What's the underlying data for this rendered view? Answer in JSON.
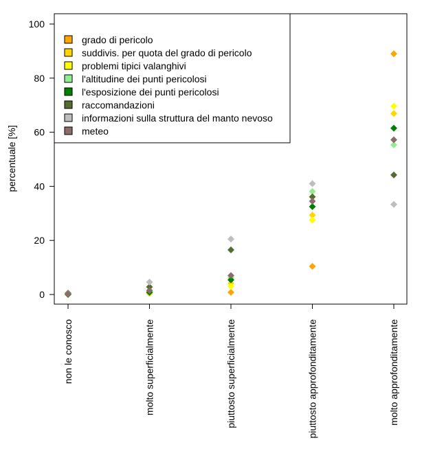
{
  "chart_data": {
    "type": "scatter",
    "title": "",
    "xlabel": "",
    "ylabel": "percentuale [%]",
    "ylim": [
      0,
      100
    ],
    "yticks": [
      0,
      20,
      40,
      60,
      80,
      100
    ],
    "grid": false,
    "legend_position": "top-left",
    "categories": [
      "non le conosco",
      "molto superficialmente",
      "piuttosto superficialmente",
      "piuttosto approfonditamente",
      "molto approfonditamente"
    ],
    "series": [
      {
        "name": "grado di pericolo",
        "color": "#FFA500",
        "values": [
          0.3,
          0.4,
          0.8,
          10.4,
          89.0
        ]
      },
      {
        "name": "suddivis. per quota del grado di pericolo",
        "color": "#FFD700",
        "values": [
          0.3,
          0.6,
          4.1,
          29.3,
          66.9
        ]
      },
      {
        "name": "problemi tipici valanghivi",
        "color": "#FFFF00",
        "values": [
          0.3,
          0.6,
          3.0,
          27.5,
          69.6
        ]
      },
      {
        "name": "l'altitudine dei punti pericolosi",
        "color": "#90EE90",
        "values": [
          0.3,
          1.2,
          6.2,
          38.1,
          55.3
        ]
      },
      {
        "name": "l'esposizione dei punti pericolosi",
        "color": "#008000",
        "values": [
          0.0,
          0.8,
          5.4,
          32.5,
          61.5
        ]
      },
      {
        "name": "raccomandazioni",
        "color": "#556B2F",
        "values": [
          0.5,
          2.8,
          16.5,
          36.1,
          44.2
        ]
      },
      {
        "name": "informazioni sulla struttura del manto nevoso",
        "color": "#BEBEBE",
        "values": [
          0.3,
          4.6,
          20.5,
          41.0,
          33.3
        ]
      },
      {
        "name": "meteo",
        "color": "#8B6C6A",
        "values": [
          0.2,
          1.5,
          7.0,
          34.5,
          57.2
        ]
      }
    ]
  }
}
